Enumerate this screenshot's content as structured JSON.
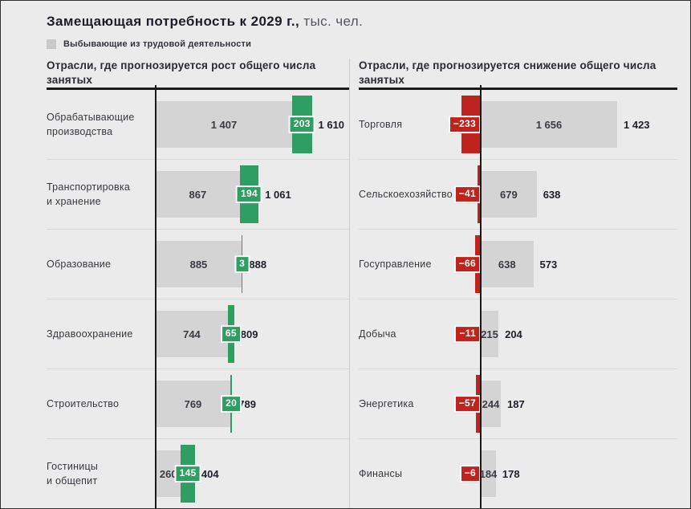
{
  "header": {
    "title": "Замещающая потребность к 2029 г.,",
    "unit": "тыс. чел."
  },
  "legend": {
    "label": "Выбывающие из трудовой деятельности",
    "swatch_color": "#c9c9c9"
  },
  "colors": {
    "background": "#ebebeb",
    "bar_gray": "#d4d4d4",
    "growth_green": "#2f9e63",
    "decline_red": "#bf231d",
    "baseline_black": "#1a1a1a",
    "text_dark": "#21212b"
  },
  "chart_data": [
    {
      "type": "bar",
      "orientation": "horizontal-stacked",
      "title": "Отрасли, где прогнозируется рост общего числа занятых",
      "legend_series": "Выбывающие из трудовой деятельности",
      "units": "тыс. чел.",
      "rows": [
        {
          "category": "Обрабатывающие\nпроизводства",
          "leaving_workforce": 1407,
          "change": 203,
          "total": 1610,
          "leaving_display": "1 407",
          "change_display": "203",
          "total_display": "1 610"
        },
        {
          "category": "Транспортировка\nи хранение",
          "leaving_workforce": 867,
          "change": 194,
          "total": 1061,
          "leaving_display": "867",
          "change_display": "194",
          "total_display": "1 061"
        },
        {
          "category": "Образование",
          "leaving_workforce": 885,
          "change": 3,
          "total": 888,
          "leaving_display": "885",
          "change_display": "3",
          "total_display": "888"
        },
        {
          "category": "Здравоохранение",
          "leaving_workforce": 744,
          "change": 65,
          "total": 809,
          "leaving_display": "744",
          "change_display": "65",
          "total_display": "809"
        },
        {
          "category": "Строительство",
          "leaving_workforce": 769,
          "change": 20,
          "total": 789,
          "leaving_display": "769",
          "change_display": "20",
          "total_display": "789"
        },
        {
          "category": "Гостиницы\nи общепит",
          "leaving_workforce": 260,
          "change": 145,
          "total": 404,
          "leaving_display": "260",
          "change_display": "145",
          "total_display": "404"
        }
      ]
    },
    {
      "type": "bar",
      "orientation": "horizontal-stacked",
      "title": "Отрасли, где прогнозируется снижение общего числа занятых",
      "legend_series": "Выбывающие из трудовой деятельности",
      "units": "тыс. чел.",
      "rows": [
        {
          "category": "Торговля",
          "leaving_workforce": 1656,
          "change": -233,
          "total": 1423,
          "leaving_display": "1 656",
          "change_display": "−233",
          "total_display": "1 423"
        },
        {
          "category": "Сельскоехозяйство",
          "leaving_workforce": 679,
          "change": -41,
          "total": 638,
          "leaving_display": "679",
          "change_display": "−41",
          "total_display": "638"
        },
        {
          "category": "Госуправление",
          "leaving_workforce": 638,
          "change": -66,
          "total": 573,
          "leaving_display": "638",
          "change_display": "−66",
          "total_display": "573"
        },
        {
          "category": "Добыча",
          "leaving_workforce": 215,
          "change": -11,
          "total": 204,
          "leaving_display": "215",
          "change_display": "−11",
          "total_display": "204"
        },
        {
          "category": "Энергетика",
          "leaving_workforce": 244,
          "change": -57,
          "total": 187,
          "leaving_display": "244",
          "change_display": "−57",
          "total_display": "187"
        },
        {
          "category": "Финансы",
          "leaving_workforce": 184,
          "change": -6,
          "total": 178,
          "leaving_display": "184",
          "change_display": "−6",
          "total_display": "178"
        }
      ]
    }
  ]
}
